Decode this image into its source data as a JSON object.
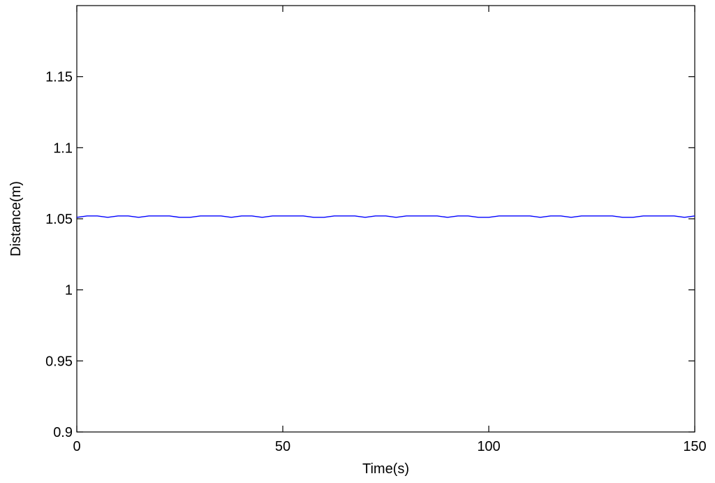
{
  "chart_data": {
    "type": "line",
    "title": "",
    "xlabel": "Time(s)",
    "ylabel": "Distance(m)",
    "xlim": [
      0,
      150
    ],
    "ylim": [
      0.9,
      1.2
    ],
    "xticks": [
      0,
      50,
      100,
      150
    ],
    "xtick_labels": [
      "0",
      "50",
      "100",
      "150"
    ],
    "yticks": [
      0.9,
      0.95,
      1.0,
      1.05,
      1.1,
      1.15
    ],
    "ytick_labels": [
      "0.9",
      "0.95",
      "1",
      "1.05",
      "1.1",
      "1.15"
    ],
    "grid": false,
    "series_color": "#0000ff",
    "series": [
      {
        "x": [
          0,
          2.5,
          5,
          7.5,
          10,
          12.5,
          15,
          17.5,
          20,
          22.5,
          25,
          27.5,
          30,
          32.5,
          35,
          37.5,
          40,
          42.5,
          45,
          47.5,
          50,
          52.5,
          55,
          57.5,
          60,
          62.5,
          65,
          67.5,
          70,
          72.5,
          75,
          77.5,
          80,
          82.5,
          85,
          87.5,
          90,
          92.5,
          95,
          97.5,
          100,
          102.5,
          105,
          107.5,
          110,
          112.5,
          115,
          117.5,
          120,
          122.5,
          125,
          127.5,
          130,
          132.5,
          135,
          137.5,
          140,
          142.5,
          145,
          147.5,
          150
        ],
        "y": [
          1.051,
          1.052,
          1.052,
          1.051,
          1.052,
          1.052,
          1.051,
          1.052,
          1.052,
          1.052,
          1.051,
          1.051,
          1.052,
          1.052,
          1.052,
          1.051,
          1.052,
          1.052,
          1.051,
          1.052,
          1.052,
          1.052,
          1.052,
          1.051,
          1.051,
          1.052,
          1.052,
          1.052,
          1.051,
          1.052,
          1.052,
          1.051,
          1.052,
          1.052,
          1.052,
          1.052,
          1.051,
          1.052,
          1.052,
          1.051,
          1.051,
          1.052,
          1.052,
          1.052,
          1.052,
          1.051,
          1.052,
          1.052,
          1.051,
          1.052,
          1.052,
          1.052,
          1.052,
          1.051,
          1.051,
          1.052,
          1.052,
          1.052,
          1.052,
          1.051,
          1.052
        ]
      }
    ]
  }
}
